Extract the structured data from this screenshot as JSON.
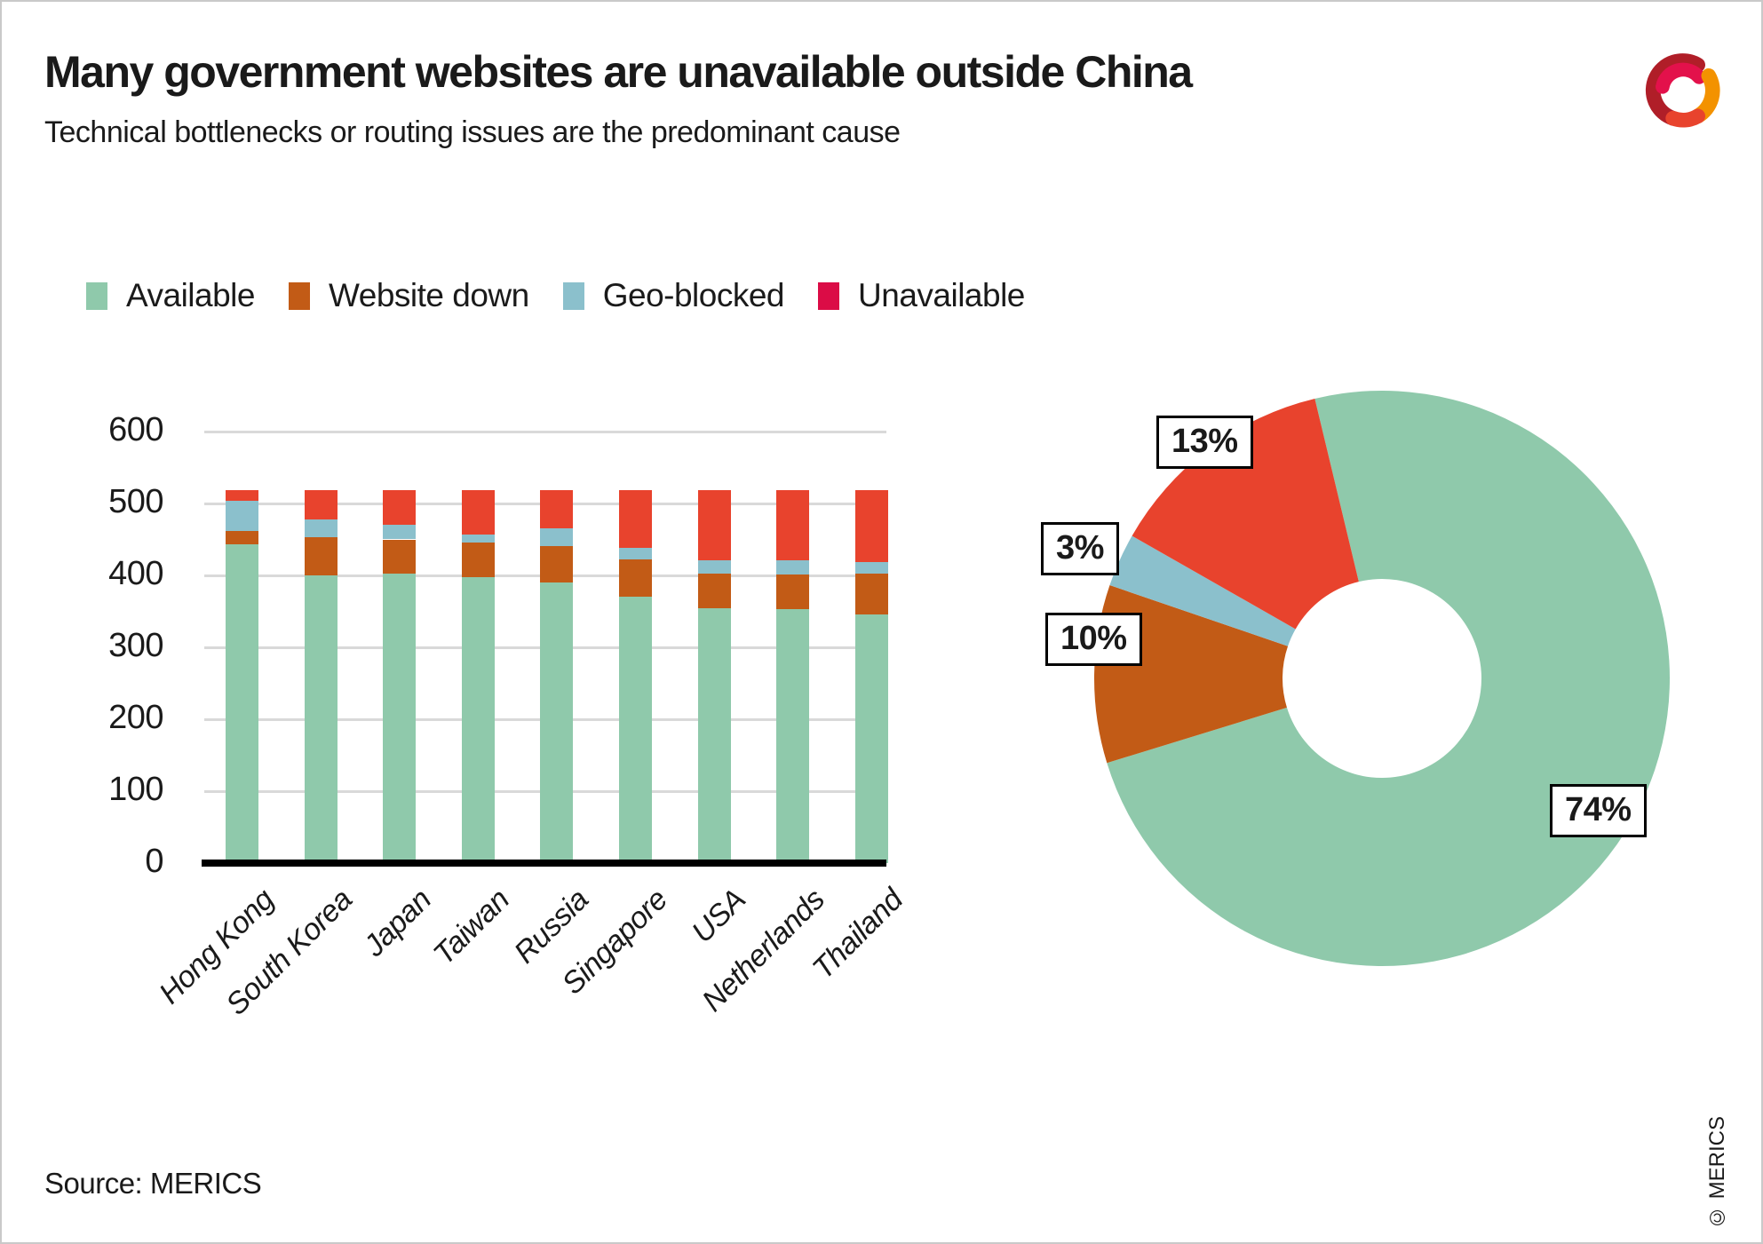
{
  "page": {
    "title": "Many government websites are unavailable outside China",
    "subtitle": "Technical bottlenecks or routing issues are the predominant cause",
    "source": "Source: MERICS",
    "copyright": "© MERICS"
  },
  "colors": {
    "available": "#8FC9AB",
    "website_down": "#C25B16",
    "geo_blocked": "#8BC0CC",
    "unavailable_chart": "#E8432D",
    "unavailable_legend": "#DB0C46",
    "gridline": "#D9D9D9",
    "axis": "#000000",
    "text": "#1A1A1A",
    "frame": "#C9C9C9",
    "logo_dark_red": "#B01E28",
    "logo_crimson": "#E3114B",
    "logo_orange": "#F39200",
    "logo_red_orange": "#E8432D"
  },
  "legend": {
    "position": "top",
    "items": [
      {
        "label": "Available",
        "color": "#8FC9AB"
      },
      {
        "label": "Website down",
        "color": "#C25B16"
      },
      {
        "label": "Geo-blocked",
        "color": "#8BC0CC"
      },
      {
        "label": "Unavailable",
        "color": "#DB0C46"
      }
    ]
  },
  "chart_data": [
    {
      "type": "bar",
      "stacked": true,
      "title": "",
      "xlabel": "",
      "ylabel": "",
      "grid": true,
      "ylim": [
        0,
        600
      ],
      "yticks": [
        "0",
        "100",
        "200",
        "300",
        "400",
        "500",
        "600"
      ],
      "categories": [
        "Hong Kong",
        "South Korea",
        "Japan",
        "Taiwan",
        "Russia",
        "Singapore",
        "USA",
        "Netherlands",
        "Thailand"
      ],
      "series": [
        {
          "name": "Available",
          "color": "#8FC9AB",
          "values": [
            443,
            400,
            403,
            397,
            390,
            370,
            354,
            353,
            346
          ]
        },
        {
          "name": "Website down",
          "color": "#C25B16",
          "values": [
            19,
            53,
            47,
            49,
            51,
            52,
            49,
            48,
            56
          ]
        },
        {
          "name": "Geo-blocked",
          "color": "#8BC0CC",
          "values": [
            42,
            25,
            20,
            11,
            24,
            16,
            18,
            20,
            17
          ]
        },
        {
          "name": "Unavailable",
          "color": "#E8432D",
          "values": [
            14,
            40,
            48,
            61,
            53,
            80,
            97,
            97,
            99
          ]
        }
      ],
      "bar_total": 518
    },
    {
      "type": "pie",
      "donut": true,
      "start_angle_deg": -13.5,
      "slices": [
        {
          "label": "Available",
          "pct": 74,
          "display": "74%",
          "color": "#8FC9AB"
        },
        {
          "label": "Website down",
          "pct": 10,
          "display": "10%",
          "color": "#C25B16"
        },
        {
          "label": "Geo-blocked",
          "pct": 3,
          "display": "3%",
          "color": "#8BC0CC"
        },
        {
          "label": "Unavailable",
          "pct": 13,
          "display": "13%",
          "color": "#E8432D"
        }
      ]
    }
  ]
}
